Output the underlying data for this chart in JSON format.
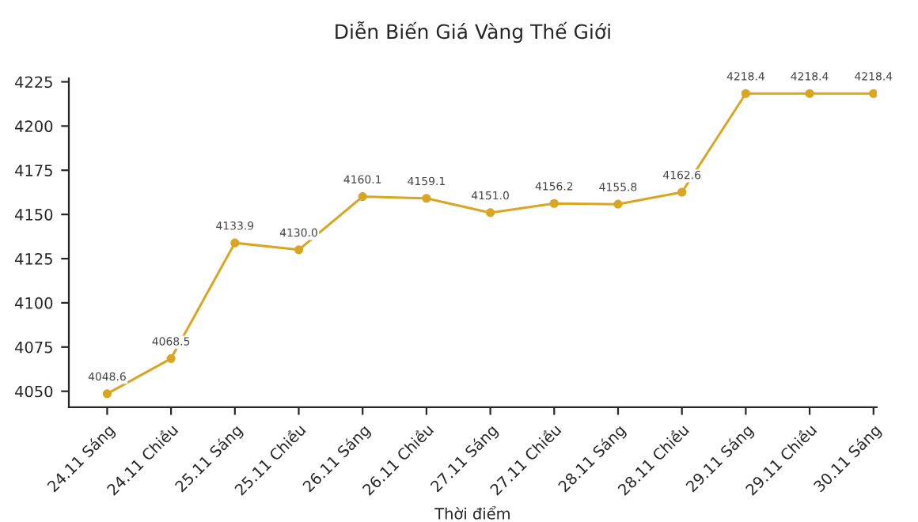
{
  "chart_data": {
    "type": "line",
    "title": "Diễn Biến Giá Vàng Thế Giới",
    "xlabel": "Thời điểm",
    "categories": [
      "24.11 Sáng",
      "24.11 Chiều",
      "25.11 Sáng",
      "25.11 Chiều",
      "26.11 Sáng",
      "26.11 Chiều",
      "27.11 Sáng",
      "27.11 Chiều",
      "28.11 Sáng",
      "28.11 Chiều",
      "29.11 Sáng",
      "29.11 Chiều",
      "30.11 Sáng"
    ],
    "series": [
      {
        "color": "#daa520",
        "values": [
          4048.6,
          4068.5,
          4133.9,
          4130.0,
          4160.1,
          4159.1,
          4151.0,
          4156.2,
          4155.8,
          4162.6,
          4218.4,
          4218.4,
          4218.4
        ],
        "value_labels": [
          "4048.6",
          "4068.5",
          "4133.9",
          "4130.0",
          "4160.1",
          "4159.1",
          "4151.0",
          "4156.2",
          "4155.8",
          "4162.6",
          "4218.4",
          "4218.4",
          "4218.4"
        ]
      }
    ],
    "ylim": [
      4041,
      4227
    ],
    "yticks": [
      4050,
      4075,
      4100,
      4125,
      4150,
      4175,
      4200,
      4225
    ],
    "marker": "circle",
    "line_style": "solid",
    "grid": false,
    "legend": false
  }
}
